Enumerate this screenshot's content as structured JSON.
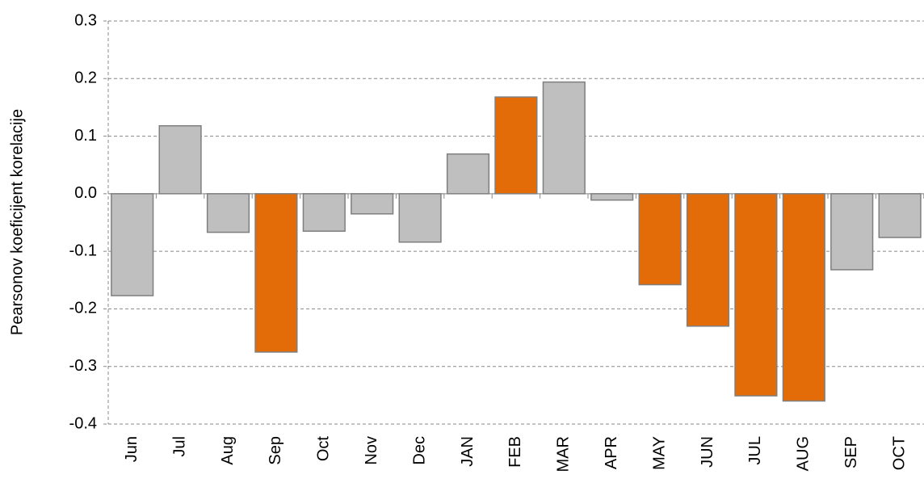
{
  "chart_data": {
    "type": "bar",
    "y_label": "Pearsonov koeficijent korelacije",
    "categories": [
      "Jun",
      "Jul",
      "Aug",
      "Sep",
      "Oct",
      "Nov",
      "Dec",
      "JAN",
      "FEB",
      "MAR",
      "APR",
      "MAY",
      "JUN",
      "JUL",
      "AUG",
      "SEP",
      "OCT"
    ],
    "values": [
      -0.177,
      0.118,
      -0.067,
      -0.275,
      -0.065,
      -0.035,
      -0.084,
      0.069,
      0.168,
      0.194,
      -0.011,
      -0.158,
      -0.23,
      -0.351,
      -0.36,
      -0.132,
      -0.076
    ],
    "colors": [
      "#bfbfbf",
      "#bfbfbf",
      "#bfbfbf",
      "#e36c09",
      "#bfbfbf",
      "#bfbfbf",
      "#bfbfbf",
      "#bfbfbf",
      "#e36c09",
      "#bfbfbf",
      "#bfbfbf",
      "#e36c09",
      "#e36c09",
      "#e36c09",
      "#e36c09",
      "#bfbfbf",
      "#bfbfbf"
    ],
    "ylim": [
      -0.4,
      0.3
    ],
    "yticks": [
      -0.4,
      -0.3,
      -0.2,
      -0.1,
      {
        "value": 0,
        "label": "0.0"
      },
      0.1,
      0.2,
      0.3
    ],
    "grid": true
  }
}
